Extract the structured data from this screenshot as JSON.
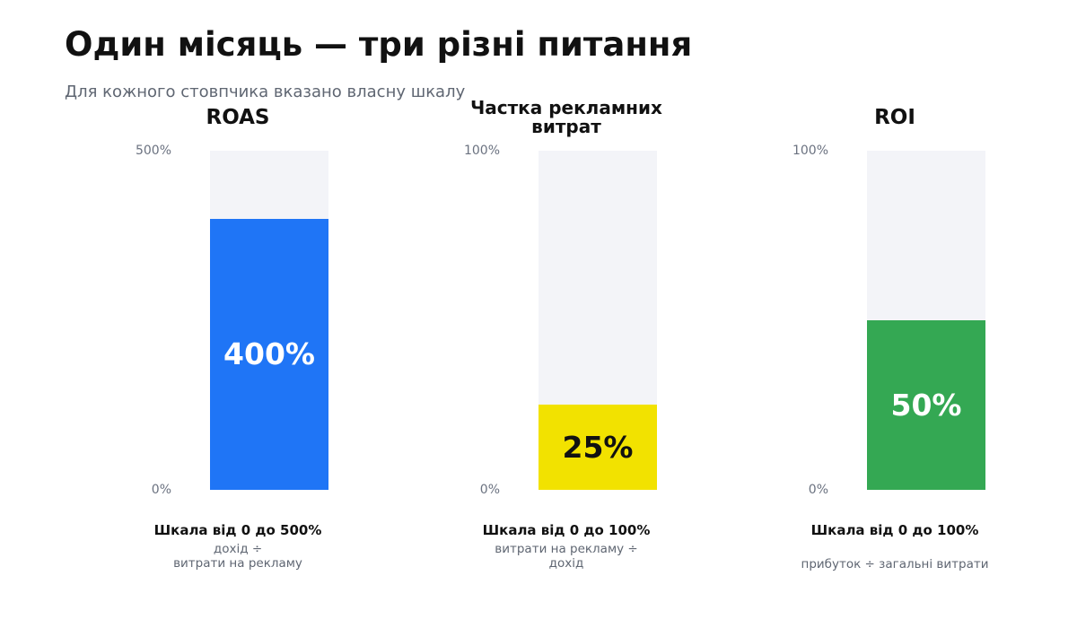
{
  "header": {
    "title": "Один місяць — три різні питання",
    "subtitle": "Для кожного стовпчика вказано власну шкалу"
  },
  "chart_data": [
    {
      "type": "bar",
      "title": "ROAS",
      "value": 400,
      "value_label": "400%",
      "ylim": [
        0,
        500
      ],
      "tick_labels": [
        "0%",
        "500%"
      ],
      "scale_caption": "Шкала від 0 до 500%",
      "formula_lines": [
        "дохід ÷",
        "витрати на рекламу"
      ],
      "bar_color": "#1f75f6",
      "track_color": "#f3f4f8",
      "label_color": "#ffffff"
    },
    {
      "type": "bar",
      "title": "Частка рекламних витрат",
      "value": 25,
      "value_label": "25%",
      "ylim": [
        0,
        100
      ],
      "tick_labels": [
        "0%",
        "100%"
      ],
      "scale_caption": "Шкала від 0 до 100%",
      "formula_lines": [
        "витрати на рекламу ÷",
        "дохід"
      ],
      "bar_color": "#f2e200",
      "track_color": "#f3f4f8",
      "label_color": "#111111"
    },
    {
      "type": "bar",
      "title": "ROI",
      "value": 50,
      "value_label": "50%",
      "ylim": [
        0,
        100
      ],
      "tick_labels": [
        "0%",
        "100%"
      ],
      "scale_caption": "Шкала від 0 до 100%",
      "formula_lines": [
        "прибуток ÷ загальні витрати"
      ],
      "bar_color": "#34a853",
      "track_color": "#f3f4f8",
      "label_color": "#ffffff"
    }
  ]
}
